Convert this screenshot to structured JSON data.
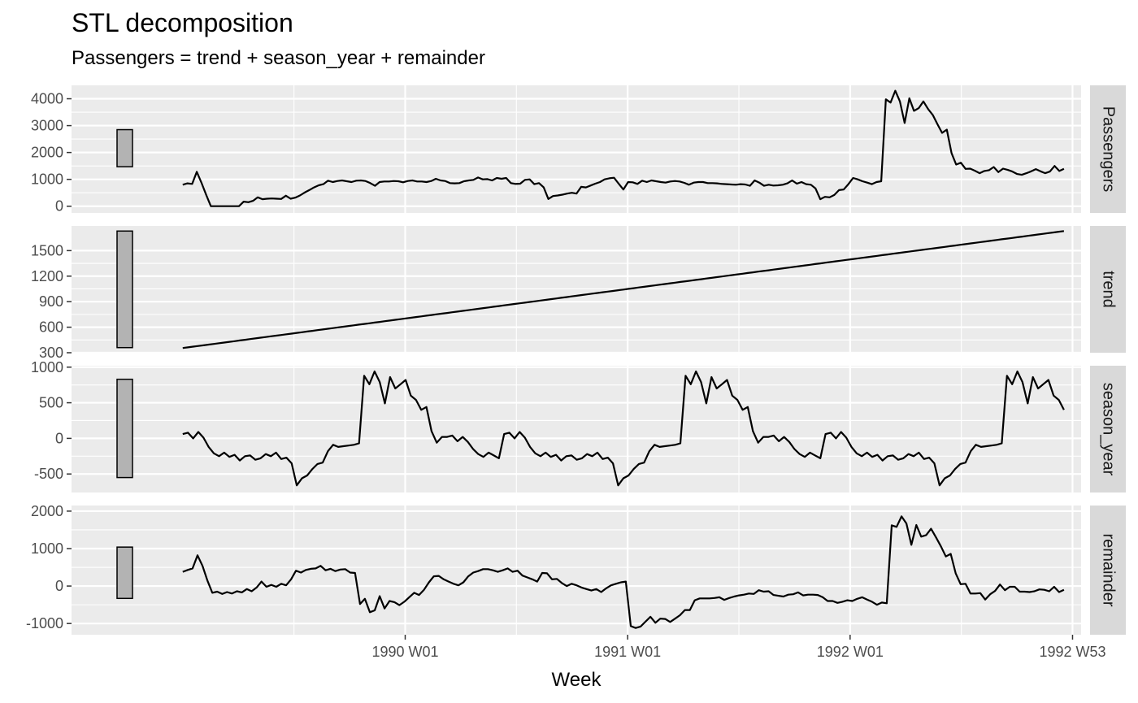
{
  "chart_data": {
    "type": "line",
    "title": "STL decomposition",
    "subtitle": "Passengers = trend + season_year + remainder",
    "xlabel": "Week",
    "x_ticks": [
      {
        "label": "1990 W01",
        "t": 52
      },
      {
        "label": "1991 W01",
        "t": 104
      },
      {
        "label": "1992 W01",
        "t": 156
      },
      {
        "label": "1992 W53",
        "t": 208
      }
    ],
    "x_range": [
      -26,
      210
    ],
    "panels": [
      {
        "name": "Passengers",
        "ylim": [
          -250,
          4500
        ],
        "yticks": [
          0,
          1000,
          2000,
          3000,
          4000
        ],
        "scale_bar": [
          1470,
          2850
        ],
        "values": [
          800,
          850,
          830,
          1280,
          870,
          420,
          0,
          0,
          0,
          0,
          0,
          0,
          0,
          170,
          150,
          200,
          330,
          260,
          280,
          290,
          280,
          270,
          390,
          280,
          320,
          400,
          510,
          600,
          700,
          780,
          820,
          950,
          900,
          940,
          960,
          930,
          900,
          950,
          960,
          940,
          860,
          760,
          900,
          920,
          920,
          940,
          930,
          890,
          940,
          960,
          920,
          920,
          900,
          940,
          1020,
          960,
          940,
          860,
          850,
          860,
          930,
          960,
          980,
          1070,
          1000,
          1010,
          960,
          1050,
          1020,
          1050,
          860,
          830,
          840,
          980,
          1000,
          820,
          860,
          700,
          270,
          380,
          400,
          430,
          470,
          500,
          470,
          720,
          700,
          770,
          840,
          900,
          1000,
          1040,
          1060,
          840,
          620,
          900,
          890,
          830,
          950,
          900,
          960,
          930,
          900,
          880,
          920,
          940,
          920,
          870,
          800,
          880,
          900,
          900,
          860,
          860,
          850,
          830,
          820,
          810,
          800,
          820,
          810,
          760,
          960,
          880,
          760,
          800,
          770,
          780,
          800,
          850,
          960,
          840,
          900,
          820,
          800,
          660,
          260,
          350,
          330,
          420,
          600,
          620,
          820,
          1050,
          1000,
          930,
          880,
          820,
          900,
          930,
          3980,
          3860,
          4300,
          3900,
          3100,
          4020,
          3550,
          3650,
          3900,
          3620,
          3400,
          3050,
          2730,
          2850,
          1980,
          1550,
          1620,
          1390,
          1400,
          1320,
          1230,
          1310,
          1340,
          1460,
          1270,
          1400,
          1350,
          1290,
          1200,
          1170,
          1230,
          1300,
          1380,
          1300,
          1230,
          1290,
          1500,
          1310,
          1390
        ]
      },
      {
        "name": "trend",
        "ylim": [
          300,
          1790
        ],
        "yticks": [
          300,
          600,
          900,
          1200,
          1500
        ],
        "scale_bar": [
          360,
          1730
        ],
        "values": {
          "start": 355,
          "end": 1730
        }
      },
      {
        "name": "season_year",
        "ylim": [
          -760,
          1020
        ],
        "yticks": [
          -500,
          0,
          500,
          1000
        ],
        "scale_bar": [
          -550,
          830
        ],
        "pattern": [
          60,
          80,
          0,
          90,
          10,
          -120,
          -210,
          -250,
          -200,
          -260,
          -230,
          -310,
          -250,
          -240,
          -300,
          -280,
          -220,
          -250,
          -200,
          -290,
          -270,
          -350,
          -660,
          -560,
          -520,
          -430,
          -360,
          -340,
          -180,
          -90,
          -120,
          -110,
          -100,
          -90,
          -70,
          880,
          760,
          940,
          790,
          490,
          860,
          700,
          760,
          820,
          600,
          540,
          400,
          440,
          100,
          -60,
          20,
          20,
          40,
          -40,
          20,
          -50,
          -150,
          -220,
          -260,
          -200,
          -240,
          -280
        ]
      },
      {
        "name": "remainder",
        "ylim": [
          -1300,
          2150
        ],
        "yticks": [
          -1000,
          0,
          1000,
          2000
        ],
        "scale_bar": [
          -330,
          1040
        ],
        "values": [
          380,
          430,
          470,
          820,
          540,
          150,
          -180,
          -150,
          -210,
          -160,
          -200,
          -140,
          -170,
          -80,
          -140,
          -40,
          120,
          -20,
          30,
          -20,
          60,
          20,
          180,
          410,
          360,
          430,
          460,
          470,
          540,
          420,
          460,
          400,
          440,
          450,
          360,
          350,
          -480,
          -340,
          -700,
          -650,
          -270,
          -600,
          -400,
          -430,
          -510,
          -420,
          -300,
          -180,
          -240,
          -100,
          100,
          260,
          270,
          180,
          120,
          60,
          20,
          100,
          260,
          360,
          400,
          450,
          450,
          420,
          380,
          420,
          470,
          380,
          410,
          280,
          230,
          180,
          120,
          350,
          340,
          180,
          190,
          80,
          0,
          60,
          20,
          -40,
          -80,
          -120,
          -80,
          -160,
          -60,
          20,
          60,
          100,
          120,
          -1070,
          -1120,
          -1080,
          -950,
          -820,
          -980,
          -870,
          -880,
          -960,
          -870,
          -780,
          -640,
          -640,
          -380,
          -330,
          -330,
          -330,
          -320,
          -300,
          -370,
          -320,
          -280,
          -250,
          -230,
          -200,
          -210,
          -110,
          -150,
          -140,
          -240,
          -260,
          -280,
          -230,
          -220,
          -170,
          -250,
          -230,
          -230,
          -240,
          -300,
          -400,
          -400,
          -450,
          -420,
          -380,
          -400,
          -340,
          -300,
          -360,
          -420,
          -500,
          -440,
          -460,
          1620,
          1580,
          1860,
          1670,
          1100,
          1630,
          1320,
          1360,
          1530,
          1300,
          1060,
          790,
          860,
          340,
          50,
          60,
          -200,
          -200,
          -190,
          -360,
          -220,
          -130,
          40,
          -110,
          -20,
          -20,
          -150,
          -150,
          -160,
          -140,
          -90,
          -100,
          -140,
          -20,
          -160,
          -100
        ]
      }
    ],
    "series_color": "#000000",
    "panel_background": "#ebebeb",
    "grid_color": "#ffffff",
    "strip_background": "#d9d9d9",
    "scale_bar_fill": "#b3b3b3"
  }
}
